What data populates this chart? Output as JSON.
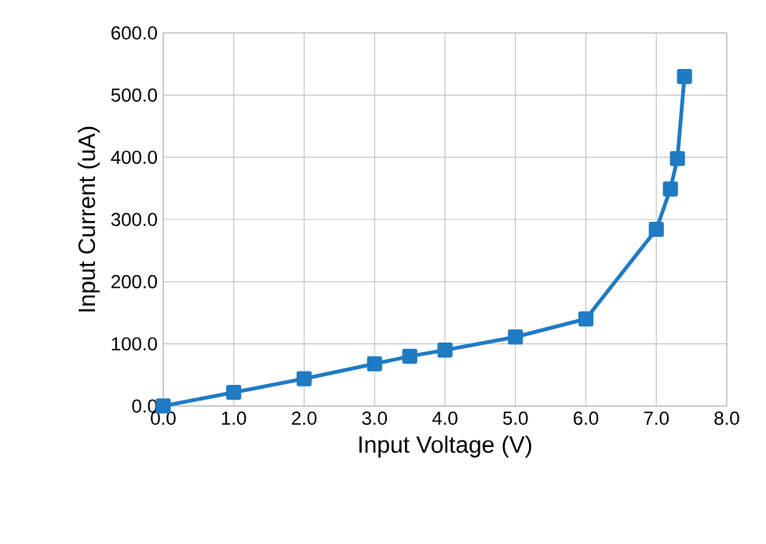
{
  "chart_data": {
    "type": "line",
    "xlabel": "Input Voltage (V)",
    "ylabel": "Input Current (uA)",
    "x": [
      0,
      1,
      2,
      3,
      3.5,
      4,
      5,
      6,
      7,
      7.2,
      7.3,
      7.4
    ],
    "series": [
      {
        "color": "#1f7bc4",
        "values": [
          0,
          22,
          44,
          68,
          80,
          90,
          111,
          140,
          284,
          349,
          398,
          530
        ]
      }
    ],
    "xlim": [
      0,
      8
    ],
    "ylim": [
      0,
      600
    ],
    "xticks": [
      {
        "value": 0,
        "label": "0.0"
      },
      {
        "value": 1,
        "label": "1.0"
      },
      {
        "value": 2,
        "label": "2.0"
      },
      {
        "value": 3,
        "label": "3.0"
      },
      {
        "value": 4,
        "label": "4.0"
      },
      {
        "value": 5,
        "label": "5.0"
      },
      {
        "value": 6,
        "label": "6.0"
      },
      {
        "value": 7,
        "label": "7.0"
      },
      {
        "value": 8,
        "label": "8.0"
      }
    ],
    "yticks": [
      {
        "value": 0,
        "label": "0.0"
      },
      {
        "value": 100,
        "label": "100.0"
      },
      {
        "value": 200,
        "label": "200.0"
      },
      {
        "value": 300,
        "label": "300.0"
      },
      {
        "value": 400,
        "label": "400.0"
      },
      {
        "value": 500,
        "label": "500.0"
      },
      {
        "value": 600,
        "label": "600.0"
      }
    ],
    "grid": true,
    "marker": "square",
    "line_style": "solid"
  }
}
